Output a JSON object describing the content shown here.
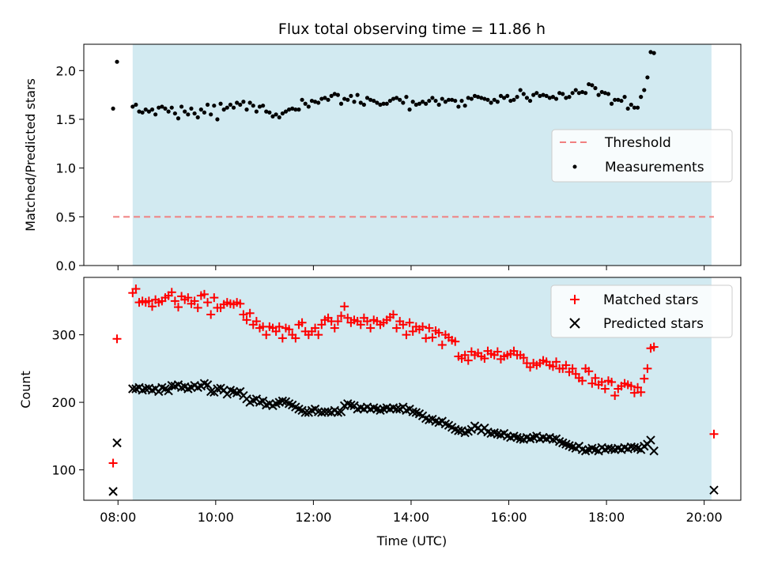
{
  "chart_data": [
    {
      "type": "scatter",
      "title": "Flux total observing time = 11.86 h",
      "xlabel": "",
      "ylabel": "Matched/Predicted stars",
      "ylim": [
        0.0,
        2.27
      ],
      "yticks": [
        0.0,
        0.5,
        1.0,
        1.5,
        2.0
      ],
      "ytick_labels": [
        "0.0",
        "0.5",
        "1.0",
        "1.5",
        "2.0"
      ],
      "xlim_hours": [
        7.3,
        20.75
      ],
      "xticks_hours": [
        8,
        10,
        12,
        14,
        16,
        18,
        20
      ],
      "shaded_span_hours": [
        8.3,
        20.15
      ],
      "shade_color": "#add8e6",
      "threshold": {
        "name": "Threshold",
        "value": 0.5,
        "x_range_hours": [
          7.9,
          20.2
        ],
        "color": "#f08080"
      },
      "legend": {
        "placement": "center-right",
        "entries": [
          "Threshold",
          "Measurements"
        ]
      },
      "series": [
        {
          "name": "Measurements",
          "marker": "dot",
          "color": "#000000",
          "x_start_hours": 8.3,
          "x_step_hours": 0.0667,
          "y": [
            1.63,
            1.65,
            1.58,
            1.57,
            1.6,
            1.58,
            1.6,
            1.55,
            1.62,
            1.63,
            1.61,
            1.58,
            1.62,
            1.56,
            1.51,
            1.63,
            1.58,
            1.55,
            1.61,
            1.56,
            1.52,
            1.6,
            1.57,
            1.65,
            1.55,
            1.64,
            1.5,
            1.66,
            1.6,
            1.62,
            1.65,
            1.62,
            1.67,
            1.65,
            1.68,
            1.6,
            1.67,
            1.64,
            1.58,
            1.63,
            1.64,
            1.58,
            1.57,
            1.53,
            1.55,
            1.52,
            1.56,
            1.58,
            1.6,
            1.61,
            1.6,
            1.6,
            1.7,
            1.66,
            1.63,
            1.69,
            1.68,
            1.67,
            1.71,
            1.72,
            1.7,
            1.74,
            1.76,
            1.75,
            1.66,
            1.71,
            1.7,
            1.74,
            1.68,
            1.75,
            1.67,
            1.65,
            1.72,
            1.7,
            1.69,
            1.67,
            1.65,
            1.66,
            1.66,
            1.69,
            1.71,
            1.72,
            1.7,
            1.67,
            1.73,
            1.6,
            1.68,
            1.65,
            1.66,
            1.68,
            1.66,
            1.69,
            1.72,
            1.69,
            1.65,
            1.71,
            1.68,
            1.7,
            1.7,
            1.69,
            1.63,
            1.69,
            1.64,
            1.72,
            1.71,
            1.74,
            1.73,
            1.72,
            1.71,
            1.7,
            1.67,
            1.7,
            1.68,
            1.74,
            1.72,
            1.74,
            1.69,
            1.7,
            1.73,
            1.8,
            1.76,
            1.72,
            1.69,
            1.75,
            1.77,
            1.74,
            1.75,
            1.74,
            1.72,
            1.73,
            1.71,
            1.77,
            1.76,
            1.72,
            1.73,
            1.77,
            1.8,
            1.77,
            1.78,
            1.77,
            1.86,
            1.85,
            1.82,
            1.75,
            1.78,
            1.77,
            1.76,
            1.66,
            1.7,
            1.7,
            1.69,
            1.73,
            1.61,
            1.65,
            1.62,
            1.62,
            1.73,
            1.8,
            1.93,
            2.19,
            2.18
          ],
          "extra_points": [
            [
              7.9,
              1.61
            ],
            [
              7.98,
              2.09
            ]
          ]
        }
      ]
    },
    {
      "type": "scatter",
      "title": "",
      "xlabel": "Time (UTC)",
      "ylabel": "Count",
      "ylim": [
        55,
        385
      ],
      "yticks": [
        100,
        200,
        300
      ],
      "ytick_labels": [
        "100",
        "200",
        "300"
      ],
      "xlim_hours": [
        7.3,
        20.75
      ],
      "xticks_hours": [
        8,
        10,
        12,
        14,
        16,
        18,
        20
      ],
      "xtick_labels": [
        "08:00",
        "10:00",
        "12:00",
        "14:00",
        "16:00",
        "18:00",
        "20:00"
      ],
      "shaded_span_hours": [
        8.3,
        20.15
      ],
      "legend": {
        "placement": "top-right",
        "entries": [
          "Matched stars",
          "Predicted stars"
        ]
      },
      "series": [
        {
          "name": "Matched stars",
          "marker": "plus",
          "color": "#ff0000",
          "x_start_hours": 8.3,
          "x_step_hours": 0.0667,
          "y": [
            362,
            368,
            348,
            350,
            348,
            350,
            342,
            352,
            348,
            350,
            355,
            358,
            363,
            350,
            341,
            357,
            352,
            355,
            346,
            350,
            340,
            358,
            360,
            348,
            330,
            355,
            340,
            340,
            345,
            348,
            346,
            345,
            348,
            346,
            330,
            322,
            332,
            315,
            320,
            310,
            312,
            300,
            312,
            310,
            305,
            312,
            295,
            310,
            308,
            300,
            295,
            315,
            318,
            305,
            300,
            305,
            310,
            300,
            315,
            322,
            325,
            320,
            310,
            320,
            328,
            342,
            325,
            318,
            322,
            320,
            315,
            325,
            320,
            310,
            322,
            320,
            315,
            318,
            322,
            326,
            330,
            310,
            320,
            315,
            300,
            318,
            305,
            312,
            308,
            312,
            295,
            310,
            296,
            306,
            303,
            285,
            300,
            296,
            292,
            290,
            268,
            265,
            270,
            262,
            275,
            270,
            273,
            268,
            265,
            276,
            272,
            270,
            275,
            264,
            268,
            270,
            272,
            276,
            270,
            270,
            266,
            258,
            252,
            258,
            255,
            258,
            262,
            260,
            255,
            253,
            260,
            250,
            250,
            255,
            245,
            250,
            242,
            236,
            232,
            250,
            246,
            228,
            236,
            226,
            230,
            220,
            232,
            230,
            210,
            220,
            224,
            228,
            226,
            224,
            214,
            222,
            215,
            235,
            250,
            280,
            282
          ],
          "extra_points": [
            [
              7.9,
              110
            ],
            [
              7.98,
              294
            ],
            [
              20.2,
              153
            ]
          ]
        },
        {
          "name": "Predicted stars",
          "marker": "x",
          "color": "#000000",
          "x_start_hours": 8.3,
          "x_step_hours": 0.0667,
          "y": [
            220,
            220,
            222,
            218,
            220,
            221,
            218,
            220,
            216,
            222,
            220,
            217,
            225,
            224,
            226,
            222,
            223,
            220,
            222,
            225,
            222,
            224,
            228,
            226,
            216,
            215,
            220,
            221,
            218,
            212,
            218,
            216,
            214,
            216,
            210,
            205,
            200,
            203,
            205,
            200,
            202,
            196,
            198,
            195,
            198,
            200,
            202,
            201,
            198,
            196,
            193,
            190,
            188,
            185,
            185,
            188,
            190,
            186,
            185,
            186,
            186,
            185,
            188,
            185,
            186,
            195,
            198,
            196,
            195,
            190,
            192,
            190,
            193,
            190,
            192,
            190,
            188,
            190,
            192,
            190,
            192,
            190,
            190,
            193,
            188,
            190,
            186,
            185,
            183,
            180,
            176,
            174,
            175,
            172,
            170,
            172,
            168,
            166,
            163,
            160,
            158,
            158,
            155,
            157,
            160,
            165,
            162,
            158,
            162,
            156,
            154,
            155,
            153,
            152,
            154,
            150,
            148,
            150,
            148,
            146,
            145,
            148,
            146,
            148,
            150,
            146,
            148,
            146,
            148,
            145,
            146,
            142,
            140,
            138,
            136,
            134,
            132,
            135,
            130,
            128,
            130,
            132,
            130,
            128,
            133,
            130,
            132,
            131,
            130,
            132,
            130,
            133,
            131,
            134,
            133,
            132,
            130,
            135,
            138,
            144,
            128
          ],
          "extra_points": [
            [
              7.9,
              68
            ],
            [
              7.98,
              140
            ],
            [
              20.2,
              70
            ]
          ]
        }
      ]
    }
  ]
}
